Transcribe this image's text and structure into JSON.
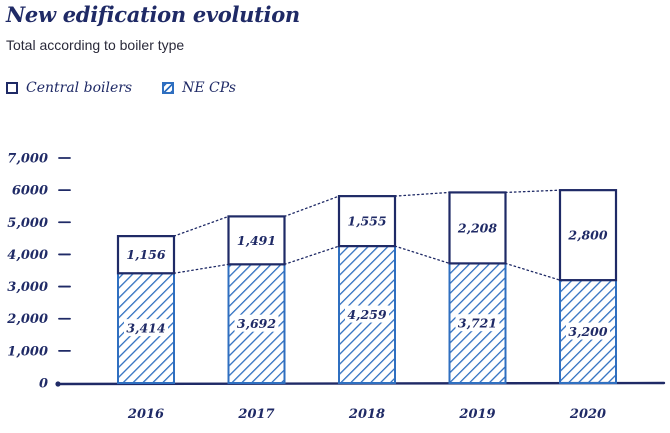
{
  "header": {
    "title": "New edification evolution",
    "subtitle": "Total according to boiler type"
  },
  "legend": {
    "items": [
      {
        "label": "Central boilers",
        "style": "outline",
        "color": "#1f2a66"
      },
      {
        "label": "NE CPs",
        "style": "hatched",
        "color": "#2f6fc0"
      }
    ]
  },
  "chart_data": {
    "type": "bar",
    "stacked": true,
    "categories": [
      "2016",
      "2017",
      "2018",
      "2019",
      "2020"
    ],
    "series": [
      {
        "name": "NE CPs",
        "values": [
          3414,
          3692,
          4259,
          3721,
          3200
        ],
        "labels": [
          "3,414",
          "3,692",
          "4,259",
          "3,721",
          "3,200"
        ],
        "color": "#2f6fc0"
      },
      {
        "name": "Central boilers",
        "values": [
          1156,
          1491,
          1555,
          2208,
          2800
        ],
        "labels": [
          "1,156",
          "1,491",
          "1,555",
          "2,208",
          "2,800"
        ],
        "color": "#1f2a66"
      }
    ],
    "yticks": [
      0,
      1000,
      2000,
      3000,
      4000,
      5000,
      6000,
      7000
    ],
    "ytick_labels": [
      "0",
      "1,000",
      "2,000",
      "3,000",
      "4,000",
      "5,000",
      "6000",
      "7,000"
    ],
    "ylim": [
      0,
      7000
    ],
    "title": "New edification evolution",
    "subtitle": "Total according to boiler type",
    "legend_position": "top-left",
    "grid": false,
    "connector_lines": "dotted"
  }
}
